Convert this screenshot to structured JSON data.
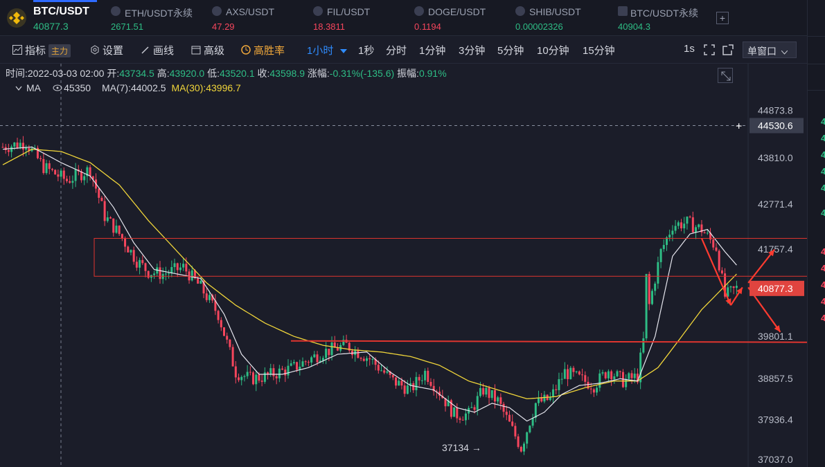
{
  "tickers": [
    {
      "name": "BTC/USDT",
      "price": "40877.3",
      "color": "#2ebd85"
    },
    {
      "name": "ETH/USDT永续",
      "price": "2671.51",
      "color": "#2ebd85"
    },
    {
      "name": "AXS/USDT",
      "price": "47.29",
      "color": "#f6465d"
    },
    {
      "name": "FIL/USDT",
      "price": "18.3811",
      "color": "#f6465d"
    },
    {
      "name": "DOGE/USDT",
      "price": "0.1194",
      "color": "#f6465d"
    },
    {
      "name": "SHIB/USDT",
      "price": "0.00002326",
      "color": "#2ebd85"
    },
    {
      "name": "BTC/USDT永续",
      "price": "40904.3",
      "color": "#2ebd85"
    }
  ],
  "toolbar": {
    "indicator_label": "指标",
    "main_badge": "主力",
    "settings_label": "设置",
    "draw_label": "画线",
    "advanced_label": "高级",
    "highwin_label": "高胜率",
    "interval_selected": "1小时",
    "intervals": [
      "1秒",
      "分时",
      "1分钟",
      "3分钟",
      "5分钟",
      "10分钟",
      "15分钟"
    ],
    "refresh_label": "1s",
    "window_mode": "单窗口"
  },
  "info": {
    "time_label": "时间:",
    "time_value": "2022-03-03 02:00",
    "open_label": "开:",
    "open_value": "43734.5",
    "high_label": "高:",
    "high_value": "43920.0",
    "low_label": "低:",
    "low_value": "43520.1",
    "close_label": "收:",
    "close_value": "43598.9",
    "change_label": "涨幅:",
    "change_value": "-0.31%(-135.6)",
    "amp_label": "振幅:",
    "amp_value": "0.91%"
  },
  "ma": {
    "label": "MA",
    "ma5_text": "45350",
    "ma7_text": "MA(7):44002.5",
    "ma30_text": "MA(30):43996.7"
  },
  "chart_data": {
    "type": "candlestick",
    "instrument": "BTC/USDT",
    "interval": "1小时",
    "y_ticks": [
      44873.8,
      43810.0,
      42771.4,
      41757.4,
      39801.1,
      38857.5,
      37936.4,
      37037.0
    ],
    "y_tick_labels": [
      "44873.8",
      "43810.0",
      "42771.4",
      "41757.4",
      "39801.1",
      "38857.5",
      "37936.4",
      "37037.0"
    ],
    "ylim": [
      36870,
      45920
    ],
    "crosshair_price": "44530.6",
    "current_price": "40877.3",
    "low_annotation": "37134 →",
    "resistance_zone": [
      41150,
      42000
    ],
    "support_level": 39700,
    "close_path": [
      [
        0,
        44050
      ],
      [
        8,
        44150
      ],
      [
        14,
        43600
      ],
      [
        22,
        43300
      ],
      [
        30,
        43550
      ],
      [
        35,
        42500
      ],
      [
        40,
        42100
      ],
      [
        46,
        41500
      ],
      [
        50,
        41250
      ],
      [
        55,
        41200
      ],
      [
        62,
        41350
      ],
      [
        68,
        40900
      ],
      [
        74,
        40300
      ],
      [
        80,
        39000
      ],
      [
        85,
        38850
      ],
      [
        90,
        38900
      ],
      [
        100,
        39100
      ],
      [
        110,
        39450
      ],
      [
        118,
        39600
      ],
      [
        126,
        39300
      ],
      [
        134,
        38800
      ],
      [
        140,
        38600
      ],
      [
        145,
        39000
      ],
      [
        150,
        38550
      ],
      [
        155,
        38050
      ],
      [
        160,
        38050
      ],
      [
        165,
        38600
      ],
      [
        170,
        38350
      ],
      [
        175,
        37700
      ],
      [
        178,
        37300
      ],
      [
        183,
        38300
      ],
      [
        188,
        38400
      ],
      [
        193,
        39000
      ],
      [
        198,
        38850
      ],
      [
        203,
        38700
      ],
      [
        208,
        39050
      ],
      [
        213,
        38800
      ],
      [
        218,
        38900
      ],
      [
        222,
        40500
      ],
      [
        226,
        41700
      ],
      [
        230,
        42300
      ],
      [
        235,
        42350
      ],
      [
        240,
        42200
      ],
      [
        245,
        41800
      ],
      [
        248,
        40700
      ],
      [
        252,
        40877
      ]
    ],
    "ma7_path": [
      [
        0,
        44000
      ],
      [
        10,
        44050
      ],
      [
        20,
        43700
      ],
      [
        30,
        43400
      ],
      [
        38,
        42700
      ],
      [
        45,
        41900
      ],
      [
        52,
        41300
      ],
      [
        60,
        41200
      ],
      [
        68,
        41100
      ],
      [
        76,
        40300
      ],
      [
        82,
        39400
      ],
      [
        88,
        38950
      ],
      [
        96,
        38950
      ],
      [
        105,
        39100
      ],
      [
        115,
        39400
      ],
      [
        125,
        39450
      ],
      [
        133,
        39000
      ],
      [
        140,
        38700
      ],
      [
        148,
        38600
      ],
      [
        156,
        38200
      ],
      [
        162,
        38100
      ],
      [
        168,
        38300
      ],
      [
        174,
        38200
      ],
      [
        180,
        37900
      ],
      [
        186,
        38100
      ],
      [
        192,
        38500
      ],
      [
        198,
        38700
      ],
      [
        205,
        38750
      ],
      [
        212,
        38850
      ],
      [
        218,
        38800
      ],
      [
        224,
        39800
      ],
      [
        230,
        41600
      ],
      [
        236,
        42100
      ],
      [
        242,
        42200
      ],
      [
        248,
        41700
      ],
      [
        252,
        41400
      ]
    ],
    "ma30_path": [
      [
        0,
        43650
      ],
      [
        10,
        44000
      ],
      [
        20,
        43950
      ],
      [
        30,
        43700
      ],
      [
        40,
        43200
      ],
      [
        50,
        42400
      ],
      [
        60,
        41700
      ],
      [
        70,
        41000
      ],
      [
        80,
        40500
      ],
      [
        90,
        40100
      ],
      [
        100,
        39800
      ],
      [
        110,
        39600
      ],
      [
        120,
        39500
      ],
      [
        130,
        39450
      ],
      [
        140,
        39350
      ],
      [
        150,
        39150
      ],
      [
        160,
        38800
      ],
      [
        170,
        38600
      ],
      [
        180,
        38400
      ],
      [
        190,
        38450
      ],
      [
        200,
        38650
      ],
      [
        210,
        38800
      ],
      [
        218,
        38800
      ],
      [
        225,
        39100
      ],
      [
        232,
        39700
      ],
      [
        240,
        40400
      ],
      [
        246,
        40800
      ],
      [
        252,
        41200
      ]
    ],
    "arrows": [
      {
        "from": [
          240,
          42000
        ],
        "to": [
          250,
          40500
        ]
      },
      {
        "from": [
          250,
          40500
        ],
        "to": [
          254,
          40900
        ]
      },
      {
        "from": [
          256,
          41000
        ],
        "to": [
          265,
          41750
        ]
      },
      {
        "from": [
          256,
          40900
        ],
        "to": [
          267,
          39900
        ]
      }
    ]
  },
  "sidebar": {
    "numbers": [
      "4",
      "4",
      "4",
      "4",
      "4",
      "4",
      "4",
      "4",
      "4",
      "4",
      "4"
    ]
  }
}
